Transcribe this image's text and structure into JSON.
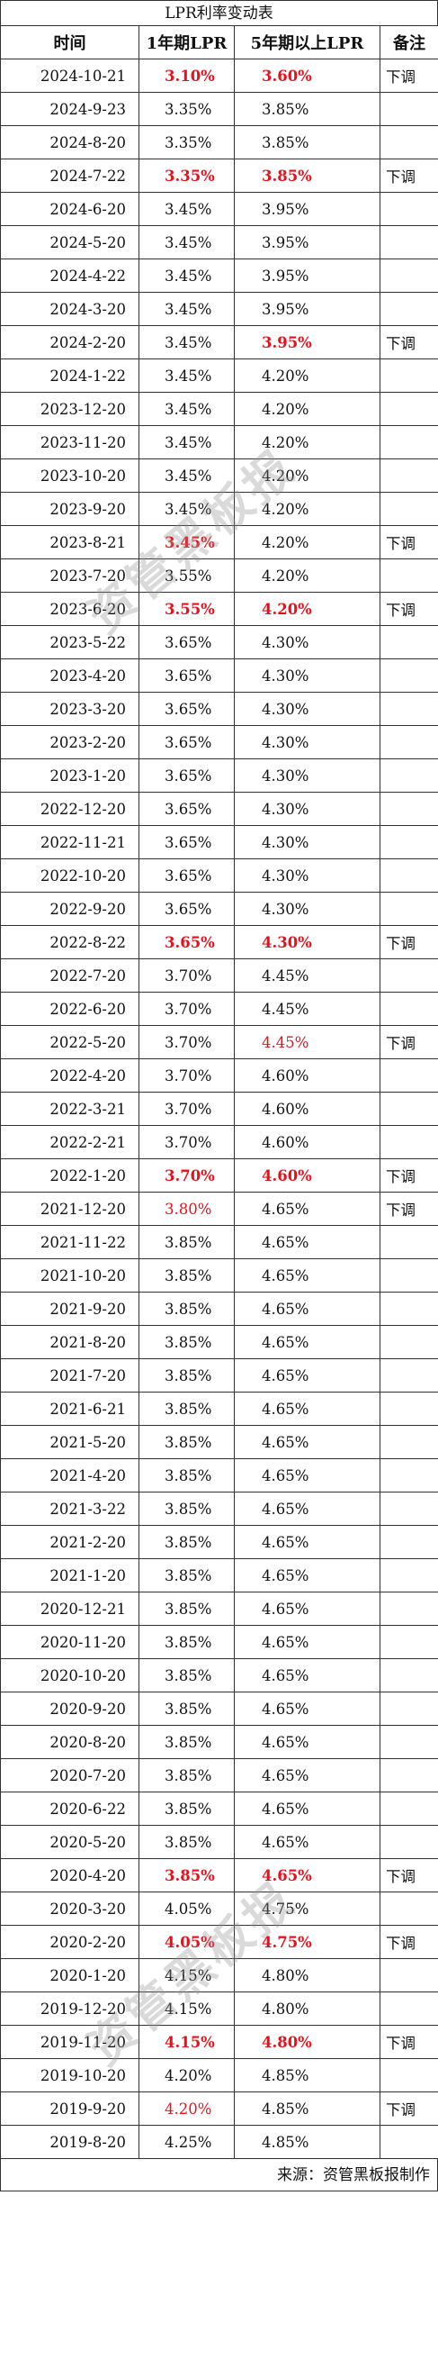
{
  "title": "LPR利率变动表",
  "headers": {
    "date": "时间",
    "lpr1": "1年期LPR",
    "lpr5": "5年期以上LPR",
    "note": "备注"
  },
  "source": "来源：资管黑板报制作",
  "watermark": "资管黑板报",
  "colors": {
    "highlight": "#e8101a",
    "border": "#333333"
  },
  "rows": [
    {
      "date": "2024-10-21",
      "lpr1": "3.10%",
      "lpr5": "3.60%",
      "note": "下调",
      "hl1": "bold",
      "hl5": "bold"
    },
    {
      "date": "2024-9-23",
      "lpr1": "3.35%",
      "lpr5": "3.85%",
      "note": "",
      "hl1": "",
      "hl5": ""
    },
    {
      "date": "2024-8-20",
      "lpr1": "3.35%",
      "lpr5": "3.85%",
      "note": "",
      "hl1": "",
      "hl5": ""
    },
    {
      "date": "2024-7-22",
      "lpr1": "3.35%",
      "lpr5": "3.85%",
      "note": "下调",
      "hl1": "bold",
      "hl5": "bold"
    },
    {
      "date": "2024-6-20",
      "lpr1": "3.45%",
      "lpr5": "3.95%",
      "note": "",
      "hl1": "",
      "hl5": ""
    },
    {
      "date": "2024-5-20",
      "lpr1": "3.45%",
      "lpr5": "3.95%",
      "note": "",
      "hl1": "",
      "hl5": ""
    },
    {
      "date": "2024-4-22",
      "lpr1": "3.45%",
      "lpr5": "3.95%",
      "note": "",
      "hl1": "",
      "hl5": ""
    },
    {
      "date": "2024-3-20",
      "lpr1": "3.45%",
      "lpr5": "3.95%",
      "note": "",
      "hl1": "",
      "hl5": ""
    },
    {
      "date": "2024-2-20",
      "lpr1": "3.45%",
      "lpr5": "3.95%",
      "note": "下调",
      "hl1": "",
      "hl5": "bold"
    },
    {
      "date": "2024-1-22",
      "lpr1": "3.45%",
      "lpr5": "4.20%",
      "note": "",
      "hl1": "",
      "hl5": ""
    },
    {
      "date": "2023-12-20",
      "lpr1": "3.45%",
      "lpr5": "4.20%",
      "note": "",
      "hl1": "",
      "hl5": ""
    },
    {
      "date": "2023-11-20",
      "lpr1": "3.45%",
      "lpr5": "4.20%",
      "note": "",
      "hl1": "",
      "hl5": ""
    },
    {
      "date": "2023-10-20",
      "lpr1": "3.45%",
      "lpr5": "4.20%",
      "note": "",
      "hl1": "",
      "hl5": ""
    },
    {
      "date": "2023-9-20",
      "lpr1": "3.45%",
      "lpr5": "4.20%",
      "note": "",
      "hl1": "",
      "hl5": ""
    },
    {
      "date": "2023-8-21",
      "lpr1": "3.45%",
      "lpr5": "4.20%",
      "note": "下调",
      "hl1": "bold",
      "hl5": ""
    },
    {
      "date": "2023-7-20",
      "lpr1": "3.55%",
      "lpr5": "4.20%",
      "note": "",
      "hl1": "",
      "hl5": ""
    },
    {
      "date": "2023-6-20",
      "lpr1": "3.55%",
      "lpr5": "4.20%",
      "note": "下调",
      "hl1": "bold",
      "hl5": "bold"
    },
    {
      "date": "2023-5-22",
      "lpr1": "3.65%",
      "lpr5": "4.30%",
      "note": "",
      "hl1": "",
      "hl5": ""
    },
    {
      "date": "2023-4-20",
      "lpr1": "3.65%",
      "lpr5": "4.30%",
      "note": "",
      "hl1": "",
      "hl5": ""
    },
    {
      "date": "2023-3-20",
      "lpr1": "3.65%",
      "lpr5": "4.30%",
      "note": "",
      "hl1": "",
      "hl5": ""
    },
    {
      "date": "2023-2-20",
      "lpr1": "3.65%",
      "lpr5": "4.30%",
      "note": "",
      "hl1": "",
      "hl5": ""
    },
    {
      "date": "2023-1-20",
      "lpr1": "3.65%",
      "lpr5": "4.30%",
      "note": "",
      "hl1": "",
      "hl5": ""
    },
    {
      "date": "2022-12-20",
      "lpr1": "3.65%",
      "lpr5": "4.30%",
      "note": "",
      "hl1": "",
      "hl5": ""
    },
    {
      "date": "2022-11-21",
      "lpr1": "3.65%",
      "lpr5": "4.30%",
      "note": "",
      "hl1": "",
      "hl5": ""
    },
    {
      "date": "2022-10-20",
      "lpr1": "3.65%",
      "lpr5": "4.30%",
      "note": "",
      "hl1": "",
      "hl5": ""
    },
    {
      "date": "2022-9-20",
      "lpr1": "3.65%",
      "lpr5": "4.30%",
      "note": "",
      "hl1": "",
      "hl5": ""
    },
    {
      "date": "2022-8-22",
      "lpr1": "3.65%",
      "lpr5": "4.30%",
      "note": "下调",
      "hl1": "bold",
      "hl5": "bold"
    },
    {
      "date": "2022-7-20",
      "lpr1": "3.70%",
      "lpr5": "4.45%",
      "note": "",
      "hl1": "",
      "hl5": ""
    },
    {
      "date": "2022-6-20",
      "lpr1": "3.70%",
      "lpr5": "4.45%",
      "note": "",
      "hl1": "",
      "hl5": ""
    },
    {
      "date": "2022-5-20",
      "lpr1": "3.70%",
      "lpr5": "4.45%",
      "note": "下调",
      "hl1": "",
      "hl5": "red"
    },
    {
      "date": "2022-4-20",
      "lpr1": "3.70%",
      "lpr5": "4.60%",
      "note": "",
      "hl1": "",
      "hl5": ""
    },
    {
      "date": "2022-3-21",
      "lpr1": "3.70%",
      "lpr5": "4.60%",
      "note": "",
      "hl1": "",
      "hl5": ""
    },
    {
      "date": "2022-2-21",
      "lpr1": "3.70%",
      "lpr5": "4.60%",
      "note": "",
      "hl1": "",
      "hl5": ""
    },
    {
      "date": "2022-1-20",
      "lpr1": "3.70%",
      "lpr5": "4.60%",
      "note": "下调",
      "hl1": "bold",
      "hl5": "bold"
    },
    {
      "date": "2021-12-20",
      "lpr1": "3.80%",
      "lpr5": "4.65%",
      "note": "下调",
      "hl1": "red",
      "hl5": ""
    },
    {
      "date": "2021-11-22",
      "lpr1": "3.85%",
      "lpr5": "4.65%",
      "note": "",
      "hl1": "",
      "hl5": ""
    },
    {
      "date": "2021-10-20",
      "lpr1": "3.85%",
      "lpr5": "4.65%",
      "note": "",
      "hl1": "",
      "hl5": ""
    },
    {
      "date": "2021-9-20",
      "lpr1": "3.85%",
      "lpr5": "4.65%",
      "note": "",
      "hl1": "",
      "hl5": ""
    },
    {
      "date": "2021-8-20",
      "lpr1": "3.85%",
      "lpr5": "4.65%",
      "note": "",
      "hl1": "",
      "hl5": ""
    },
    {
      "date": "2021-7-20",
      "lpr1": "3.85%",
      "lpr5": "4.65%",
      "note": "",
      "hl1": "",
      "hl5": ""
    },
    {
      "date": "2021-6-21",
      "lpr1": "3.85%",
      "lpr5": "4.65%",
      "note": "",
      "hl1": "",
      "hl5": ""
    },
    {
      "date": "2021-5-20",
      "lpr1": "3.85%",
      "lpr5": "4.65%",
      "note": "",
      "hl1": "",
      "hl5": ""
    },
    {
      "date": "2021-4-20",
      "lpr1": "3.85%",
      "lpr5": "4.65%",
      "note": "",
      "hl1": "",
      "hl5": ""
    },
    {
      "date": "2021-3-22",
      "lpr1": "3.85%",
      "lpr5": "4.65%",
      "note": "",
      "hl1": "",
      "hl5": ""
    },
    {
      "date": "2021-2-20",
      "lpr1": "3.85%",
      "lpr5": "4.65%",
      "note": "",
      "hl1": "",
      "hl5": ""
    },
    {
      "date": "2021-1-20",
      "lpr1": "3.85%",
      "lpr5": "4.65%",
      "note": "",
      "hl1": "",
      "hl5": ""
    },
    {
      "date": "2020-12-21",
      "lpr1": "3.85%",
      "lpr5": "4.65%",
      "note": "",
      "hl1": "",
      "hl5": ""
    },
    {
      "date": "2020-11-20",
      "lpr1": "3.85%",
      "lpr5": "4.65%",
      "note": "",
      "hl1": "",
      "hl5": ""
    },
    {
      "date": "2020-10-20",
      "lpr1": "3.85%",
      "lpr5": "4.65%",
      "note": "",
      "hl1": "",
      "hl5": ""
    },
    {
      "date": "2020-9-20",
      "lpr1": "3.85%",
      "lpr5": "4.65%",
      "note": "",
      "hl1": "",
      "hl5": ""
    },
    {
      "date": "2020-8-20",
      "lpr1": "3.85%",
      "lpr5": "4.65%",
      "note": "",
      "hl1": "",
      "hl5": ""
    },
    {
      "date": "2020-7-20",
      "lpr1": "3.85%",
      "lpr5": "4.65%",
      "note": "",
      "hl1": "",
      "hl5": ""
    },
    {
      "date": "2020-6-22",
      "lpr1": "3.85%",
      "lpr5": "4.65%",
      "note": "",
      "hl1": "",
      "hl5": ""
    },
    {
      "date": "2020-5-20",
      "lpr1": "3.85%",
      "lpr5": "4.65%",
      "note": "",
      "hl1": "",
      "hl5": ""
    },
    {
      "date": "2020-4-20",
      "lpr1": "3.85%",
      "lpr5": "4.65%",
      "note": "下调",
      "hl1": "bold",
      "hl5": "bold"
    },
    {
      "date": "2020-3-20",
      "lpr1": "4.05%",
      "lpr5": "4.75%",
      "note": "",
      "hl1": "",
      "hl5": ""
    },
    {
      "date": "2020-2-20",
      "lpr1": "4.05%",
      "lpr5": "4.75%",
      "note": "下调",
      "hl1": "bold",
      "hl5": "bold"
    },
    {
      "date": "2020-1-20",
      "lpr1": "4.15%",
      "lpr5": "4.80%",
      "note": "",
      "hl1": "",
      "hl5": ""
    },
    {
      "date": "2019-12-20",
      "lpr1": "4.15%",
      "lpr5": "4.80%",
      "note": "",
      "hl1": "",
      "hl5": ""
    },
    {
      "date": "2019-11-20",
      "lpr1": "4.15%",
      "lpr5": "4.80%",
      "note": "下调",
      "hl1": "bold",
      "hl5": "bold"
    },
    {
      "date": "2019-10-20",
      "lpr1": "4.20%",
      "lpr5": "4.85%",
      "note": "",
      "hl1": "",
      "hl5": ""
    },
    {
      "date": "2019-9-20",
      "lpr1": "4.20%",
      "lpr5": "4.85%",
      "note": "下调",
      "hl1": "red",
      "hl5": ""
    },
    {
      "date": "2019-8-20",
      "lpr1": "4.25%",
      "lpr5": "4.85%",
      "note": "",
      "hl1": "",
      "hl5": ""
    }
  ]
}
